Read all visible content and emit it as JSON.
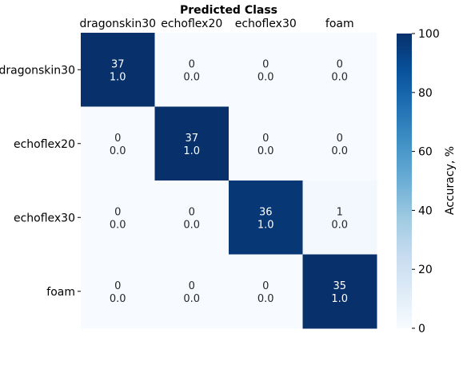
{
  "chart_data": {
    "type": "heatmap",
    "title": "Predicted Class",
    "row_labels": [
      "dragonskin30",
      "echoflex20",
      "echoflex30",
      "foam"
    ],
    "col_labels": [
      "dragonskin30",
      "echoflex20",
      "echoflex30",
      "foam"
    ],
    "counts": [
      [
        37,
        0,
        0,
        0
      ],
      [
        0,
        37,
        0,
        0
      ],
      [
        0,
        0,
        36,
        1
      ],
      [
        0,
        0,
        0,
        35
      ]
    ],
    "fractions": [
      [
        "1.0",
        "0.0",
        "0.0",
        "0.0"
      ],
      [
        "0.0",
        "1.0",
        "0.0",
        "0.0"
      ],
      [
        "0.0",
        "0.0",
        "1.0",
        "0.0"
      ],
      [
        "0.0",
        "0.0",
        "0.0",
        "1.0"
      ]
    ],
    "accuracy_percent": [
      [
        100,
        0,
        0,
        0
      ],
      [
        0,
        100,
        0,
        0
      ],
      [
        0,
        0,
        97.3,
        2.7
      ],
      [
        0,
        0,
        0,
        100
      ]
    ],
    "colorbar": {
      "label": "Accuracy, %",
      "range": [
        0,
        100
      ],
      "ticks": [
        0,
        20,
        40,
        60,
        80,
        100
      ],
      "colormap": "Blues",
      "colors": [
        "#f7fbff",
        "#deebf7",
        "#c6dbef",
        "#9ecae1",
        "#6baed6",
        "#4292c6",
        "#2171b5",
        "#08519c",
        "#08306b"
      ]
    },
    "x_tick_position": "top"
  }
}
